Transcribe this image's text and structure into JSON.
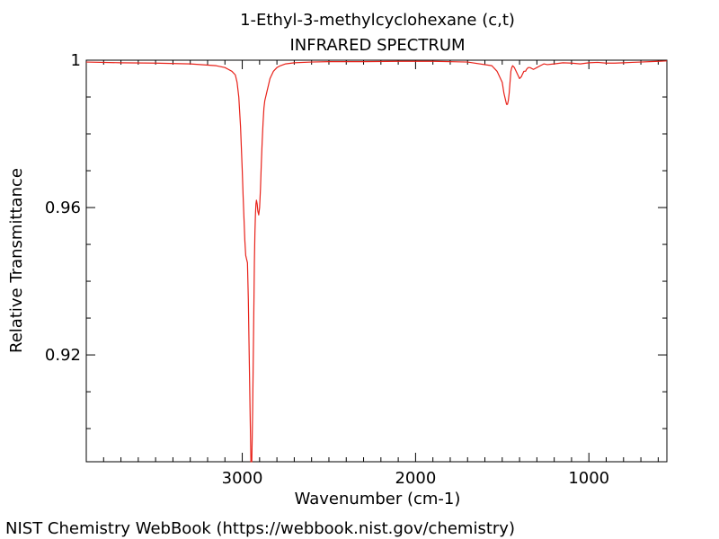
{
  "chart_data": {
    "type": "line",
    "title": "1-Ethyl-3-methylcyclohexane (c,t)",
    "subtitle": "INFRARED SPECTRUM",
    "xlabel": "Wavenumber (cm-1)",
    "ylabel": "Relative Transmittance",
    "xlim": [
      3900,
      550
    ],
    "ylim": [
      0.891,
      1.0
    ],
    "x_ticks": [
      3000,
      2000,
      1000
    ],
    "x_tick_labels": [
      "3000",
      "2000",
      "1000"
    ],
    "y_ticks": [
      1.0,
      0.96,
      0.92
    ],
    "y_tick_labels": [
      "1",
      "0.96",
      "0.92"
    ],
    "grid": false,
    "series": [
      {
        "color": "#e8221a",
        "x": [
          3900,
          3700,
          3500,
          3300,
          3150,
          3100,
          3080,
          3060,
          3040,
          3030,
          3020,
          3010,
          3000,
          2995,
          2990,
          2985,
          2980,
          2975,
          2970,
          2965,
          2960,
          2955,
          2950,
          2945,
          2940,
          2935,
          2930,
          2927,
          2924,
          2921,
          2918,
          2914,
          2910,
          2905,
          2900,
          2895,
          2890,
          2885,
          2880,
          2875,
          2870,
          2865,
          2860,
          2855,
          2850,
          2845,
          2840,
          2830,
          2820,
          2800,
          2780,
          2750,
          2700,
          2600,
          2500,
          2300,
          2100,
          1900,
          1700,
          1560,
          1530,
          1500,
          1490,
          1480,
          1475,
          1470,
          1465,
          1460,
          1455,
          1450,
          1445,
          1440,
          1430,
          1420,
          1410,
          1400,
          1390,
          1385,
          1380,
          1375,
          1370,
          1365,
          1360,
          1350,
          1340,
          1320,
          1300,
          1280,
          1260,
          1240,
          1200,
          1150,
          1100,
          1050,
          1000,
          950,
          900,
          850,
          800,
          750,
          700,
          650,
          600,
          550
        ],
        "y": [
          0.9995,
          0.9993,
          0.9992,
          0.999,
          0.9985,
          0.998,
          0.9975,
          0.997,
          0.996,
          0.994,
          0.99,
          0.982,
          0.97,
          0.963,
          0.957,
          0.951,
          0.947,
          0.946,
          0.945,
          0.935,
          0.92,
          0.905,
          0.891,
          0.891,
          0.905,
          0.925,
          0.945,
          0.953,
          0.958,
          0.961,
          0.962,
          0.961,
          0.959,
          0.958,
          0.96,
          0.965,
          0.972,
          0.978,
          0.983,
          0.987,
          0.989,
          0.99,
          0.991,
          0.992,
          0.993,
          0.994,
          0.995,
          0.996,
          0.997,
          0.998,
          0.9985,
          0.999,
          0.9993,
          0.9995,
          0.9996,
          0.9996,
          0.9997,
          0.9997,
          0.9995,
          0.9985,
          0.997,
          0.994,
          0.991,
          0.989,
          0.988,
          0.988,
          0.989,
          0.991,
          0.994,
          0.997,
          0.998,
          0.9985,
          0.998,
          0.997,
          0.996,
          0.995,
          0.9955,
          0.996,
          0.9965,
          0.997,
          0.997,
          0.997,
          0.9975,
          0.998,
          0.998,
          0.9975,
          0.998,
          0.9985,
          0.999,
          0.9988,
          0.999,
          0.9993,
          0.9992,
          0.999,
          0.9993,
          0.9994,
          0.9992,
          0.9992,
          0.9993,
          0.9994,
          0.9995,
          0.9996,
          0.9997,
          0.9998
        ]
      }
    ]
  },
  "footer": {
    "credit": "NIST Chemistry WebBook (https://webbook.nist.gov/chemistry)"
  }
}
